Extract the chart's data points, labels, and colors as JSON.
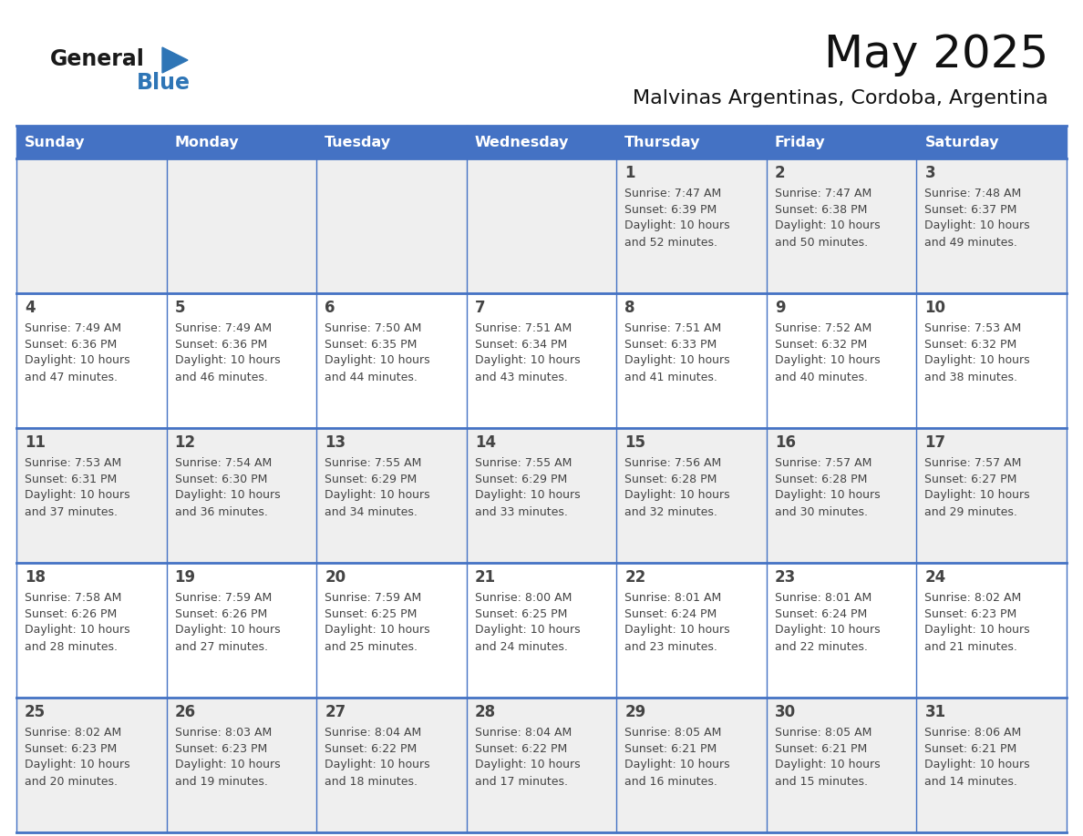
{
  "title": "May 2025",
  "subtitle": "Malvinas Argentinas, Cordoba, Argentina",
  "days_of_week": [
    "Sunday",
    "Monday",
    "Tuesday",
    "Wednesday",
    "Thursday",
    "Friday",
    "Saturday"
  ],
  "header_bg": "#4472C4",
  "header_text": "#FFFFFF",
  "cell_bg_light": "#EFEFEF",
  "cell_bg_white": "#FFFFFF",
  "line_color": "#4472C4",
  "text_color": "#444444",
  "logo_general_color": "#1a1a1a",
  "logo_blue_color": "#2E75B6",
  "weeks": [
    [
      null,
      null,
      null,
      null,
      {
        "day": 1,
        "sunrise": "7:47 AM",
        "sunset": "6:39 PM",
        "daylight": "10 hours and 52 minutes."
      },
      {
        "day": 2,
        "sunrise": "7:47 AM",
        "sunset": "6:38 PM",
        "daylight": "10 hours and 50 minutes."
      },
      {
        "day": 3,
        "sunrise": "7:48 AM",
        "sunset": "6:37 PM",
        "daylight": "10 hours and 49 minutes."
      }
    ],
    [
      {
        "day": 4,
        "sunrise": "7:49 AM",
        "sunset": "6:36 PM",
        "daylight": "10 hours and 47 minutes."
      },
      {
        "day": 5,
        "sunrise": "7:49 AM",
        "sunset": "6:36 PM",
        "daylight": "10 hours and 46 minutes."
      },
      {
        "day": 6,
        "sunrise": "7:50 AM",
        "sunset": "6:35 PM",
        "daylight": "10 hours and 44 minutes."
      },
      {
        "day": 7,
        "sunrise": "7:51 AM",
        "sunset": "6:34 PM",
        "daylight": "10 hours and 43 minutes."
      },
      {
        "day": 8,
        "sunrise": "7:51 AM",
        "sunset": "6:33 PM",
        "daylight": "10 hours and 41 minutes."
      },
      {
        "day": 9,
        "sunrise": "7:52 AM",
        "sunset": "6:32 PM",
        "daylight": "10 hours and 40 minutes."
      },
      {
        "day": 10,
        "sunrise": "7:53 AM",
        "sunset": "6:32 PM",
        "daylight": "10 hours and 38 minutes."
      }
    ],
    [
      {
        "day": 11,
        "sunrise": "7:53 AM",
        "sunset": "6:31 PM",
        "daylight": "10 hours and 37 minutes."
      },
      {
        "day": 12,
        "sunrise": "7:54 AM",
        "sunset": "6:30 PM",
        "daylight": "10 hours and 36 minutes."
      },
      {
        "day": 13,
        "sunrise": "7:55 AM",
        "sunset": "6:29 PM",
        "daylight": "10 hours and 34 minutes."
      },
      {
        "day": 14,
        "sunrise": "7:55 AM",
        "sunset": "6:29 PM",
        "daylight": "10 hours and 33 minutes."
      },
      {
        "day": 15,
        "sunrise": "7:56 AM",
        "sunset": "6:28 PM",
        "daylight": "10 hours and 32 minutes."
      },
      {
        "day": 16,
        "sunrise": "7:57 AM",
        "sunset": "6:28 PM",
        "daylight": "10 hours and 30 minutes."
      },
      {
        "day": 17,
        "sunrise": "7:57 AM",
        "sunset": "6:27 PM",
        "daylight": "10 hours and 29 minutes."
      }
    ],
    [
      {
        "day": 18,
        "sunrise": "7:58 AM",
        "sunset": "6:26 PM",
        "daylight": "10 hours and 28 minutes."
      },
      {
        "day": 19,
        "sunrise": "7:59 AM",
        "sunset": "6:26 PM",
        "daylight": "10 hours and 27 minutes."
      },
      {
        "day": 20,
        "sunrise": "7:59 AM",
        "sunset": "6:25 PM",
        "daylight": "10 hours and 25 minutes."
      },
      {
        "day": 21,
        "sunrise": "8:00 AM",
        "sunset": "6:25 PM",
        "daylight": "10 hours and 24 minutes."
      },
      {
        "day": 22,
        "sunrise": "8:01 AM",
        "sunset": "6:24 PM",
        "daylight": "10 hours and 23 minutes."
      },
      {
        "day": 23,
        "sunrise": "8:01 AM",
        "sunset": "6:24 PM",
        "daylight": "10 hours and 22 minutes."
      },
      {
        "day": 24,
        "sunrise": "8:02 AM",
        "sunset": "6:23 PM",
        "daylight": "10 hours and 21 minutes."
      }
    ],
    [
      {
        "day": 25,
        "sunrise": "8:02 AM",
        "sunset": "6:23 PM",
        "daylight": "10 hours and 20 minutes."
      },
      {
        "day": 26,
        "sunrise": "8:03 AM",
        "sunset": "6:23 PM",
        "daylight": "10 hours and 19 minutes."
      },
      {
        "day": 27,
        "sunrise": "8:04 AM",
        "sunset": "6:22 PM",
        "daylight": "10 hours and 18 minutes."
      },
      {
        "day": 28,
        "sunrise": "8:04 AM",
        "sunset": "6:22 PM",
        "daylight": "10 hours and 17 minutes."
      },
      {
        "day": 29,
        "sunrise": "8:05 AM",
        "sunset": "6:21 PM",
        "daylight": "10 hours and 16 minutes."
      },
      {
        "day": 30,
        "sunrise": "8:05 AM",
        "sunset": "6:21 PM",
        "daylight": "10 hours and 15 minutes."
      },
      {
        "day": 31,
        "sunrise": "8:06 AM",
        "sunset": "6:21 PM",
        "daylight": "10 hours and 14 minutes."
      }
    ]
  ]
}
